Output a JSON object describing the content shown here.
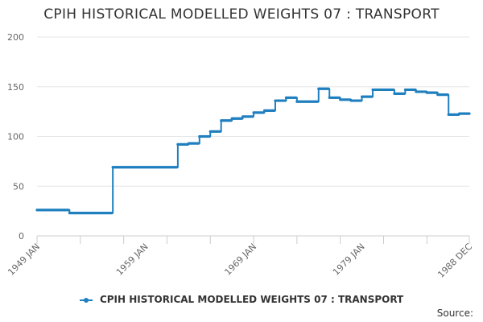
{
  "chart_data": {
    "type": "line",
    "title": "CPIH HISTORICAL MODELLED WEIGHTS 07 : TRANSPORT",
    "xlabel": "",
    "ylabel": "",
    "ylim": [
      0,
      200
    ],
    "yticks": [
      0,
      50,
      100,
      150,
      200
    ],
    "xlim": [
      "1949 JAN",
      "1988 DEC"
    ],
    "xtick_labels": [
      "1949 JAN",
      "1959 JAN",
      "1969 JAN",
      "1979 JAN",
      "1988 DEC"
    ],
    "grid": true,
    "legend_position": "bottom",
    "series": [
      {
        "name": "CPIH HISTORICAL MODELLED WEIGHTS 07 : TRANSPORT",
        "color": "#1f7fbf",
        "points": [
          {
            "period": "1949",
            "value": 26
          },
          {
            "period": "1950",
            "value": 26
          },
          {
            "period": "1951",
            "value": 26
          },
          {
            "period": "1952",
            "value": 23
          },
          {
            "period": "1953",
            "value": 23
          },
          {
            "period": "1954",
            "value": 23
          },
          {
            "period": "1955",
            "value": 23
          },
          {
            "period": "1956",
            "value": 69
          },
          {
            "period": "1957",
            "value": 69
          },
          {
            "period": "1958",
            "value": 69
          },
          {
            "period": "1959",
            "value": 69
          },
          {
            "period": "1960",
            "value": 69
          },
          {
            "period": "1961",
            "value": 69
          },
          {
            "period": "1962",
            "value": 92
          },
          {
            "period": "1963",
            "value": 93
          },
          {
            "period": "1964",
            "value": 100
          },
          {
            "period": "1965",
            "value": 105
          },
          {
            "period": "1966",
            "value": 116
          },
          {
            "period": "1967",
            "value": 118
          },
          {
            "period": "1968",
            "value": 120
          },
          {
            "period": "1969",
            "value": 124
          },
          {
            "period": "1970",
            "value": 126
          },
          {
            "period": "1971",
            "value": 136
          },
          {
            "period": "1972",
            "value": 139
          },
          {
            "period": "1973",
            "value": 135
          },
          {
            "period": "1974",
            "value": 135
          },
          {
            "period": "1975",
            "value": 148
          },
          {
            "period": "1976",
            "value": 139
          },
          {
            "period": "1977",
            "value": 137
          },
          {
            "period": "1978",
            "value": 136
          },
          {
            "period": "1979",
            "value": 140
          },
          {
            "period": "1980",
            "value": 147
          },
          {
            "period": "1981",
            "value": 147
          },
          {
            "period": "1982",
            "value": 143
          },
          {
            "period": "1983",
            "value": 147
          },
          {
            "period": "1984",
            "value": 145
          },
          {
            "period": "1985",
            "value": 144
          },
          {
            "period": "1986",
            "value": 142
          },
          {
            "period": "1987",
            "value": 122
          },
          {
            "period": "1988",
            "value": 123
          }
        ]
      }
    ]
  },
  "source_label": "Source:"
}
